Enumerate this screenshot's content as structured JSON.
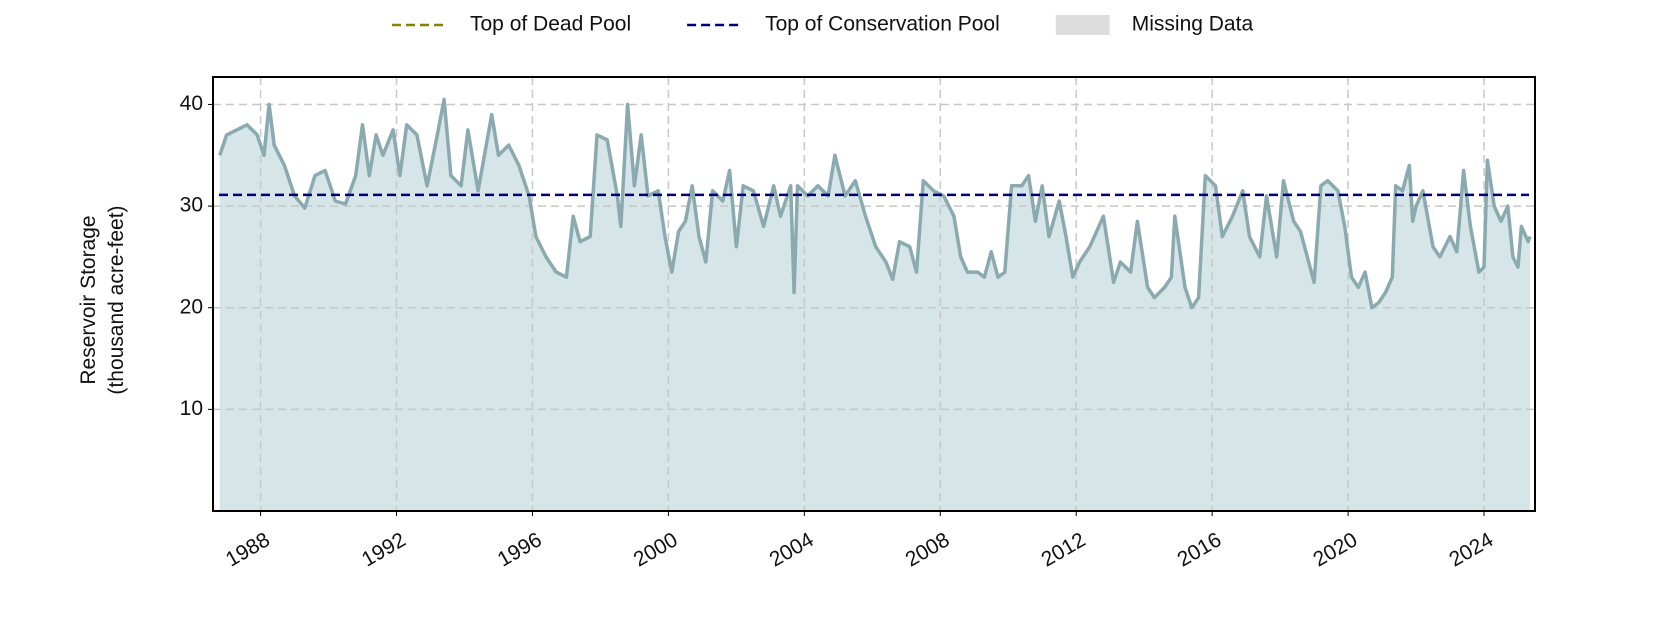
{
  "chart_data": {
    "type": "area-line",
    "ylabel": [
      "Reservoir Storage",
      "(thousand acre-feet)"
    ],
    "xlim": [
      1986.6,
      2025.5
    ],
    "ylim": [
      0,
      42.7
    ],
    "xticks": [
      1988,
      1992,
      1996,
      2000,
      2004,
      2008,
      2012,
      2016,
      2020,
      2024
    ],
    "yticks": [
      10,
      20,
      30,
      40
    ],
    "grid": true,
    "legend": "top",
    "fill_color": "#d6e5e7",
    "series": [
      {
        "name": "Reservoir Storage",
        "color": "#8aaab0",
        "x": [
          1986.8,
          1987.0,
          1987.3,
          1987.6,
          1987.9,
          1988.1,
          1988.25,
          1988.4,
          1988.7,
          1989.0,
          1989.3,
          1989.6,
          1989.9,
          1990.2,
          1990.5,
          1990.8,
          1991.0,
          1991.2,
          1991.4,
          1991.6,
          1991.9,
          1992.1,
          1992.3,
          1992.6,
          1992.9,
          1993.2,
          1993.4,
          1993.6,
          1993.9,
          1994.1,
          1994.4,
          1994.8,
          1995.0,
          1995.3,
          1995.6,
          1995.9,
          1996.1,
          1996.4,
          1996.7,
          1997.0,
          1997.2,
          1997.4,
          1997.7,
          1997.9,
          1998.2,
          1998.5,
          1998.6,
          1998.8,
          1999.0,
          1999.2,
          1999.4,
          1999.7,
          1999.9,
          2000.1,
          2000.3,
          2000.5,
          2000.7,
          2000.9,
          2001.1,
          2001.3,
          2001.6,
          2001.8,
          2002.0,
          2002.2,
          2002.5,
          2002.8,
          2003.1,
          2003.3,
          2003.6,
          2003.7,
          2003.8,
          2004.1,
          2004.4,
          2004.7,
          2004.9,
          2005.2,
          2005.5,
          2005.8,
          2006.1,
          2006.4,
          2006.6,
          2006.8,
          2007.1,
          2007.3,
          2007.5,
          2007.8,
          2008.1,
          2008.4,
          2008.6,
          2008.8,
          2009.1,
          2009.3,
          2009.5,
          2009.7,
          2009.9,
          2010.1,
          2010.4,
          2010.6,
          2010.8,
          2011.0,
          2011.2,
          2011.5,
          2011.7,
          2011.9,
          2012.1,
          2012.4,
          2012.6,
          2012.8,
          2013.1,
          2013.3,
          2013.6,
          2013.8,
          2014.1,
          2014.3,
          2014.6,
          2014.8,
          2014.9,
          2015.2,
          2015.4,
          2015.6,
          2015.8,
          2016.1,
          2016.3,
          2016.6,
          2016.9,
          2017.1,
          2017.4,
          2017.6,
          2017.9,
          2018.1,
          2018.4,
          2018.6,
          2018.8,
          2019.0,
          2019.2,
          2019.4,
          2019.7,
          2019.9,
          2020.1,
          2020.3,
          2020.5,
          2020.7,
          2020.9,
          2021.1,
          2021.3,
          2021.4,
          2021.6,
          2021.8,
          2021.9,
          2022.0,
          2022.2,
          2022.5,
          2022.7,
          2023.0,
          2023.2,
          2023.4,
          2023.6,
          2023.85,
          2024.0,
          2024.1,
          2024.3,
          2024.5,
          2024.7,
          2024.85,
          2025.0,
          2025.1,
          2025.3,
          2025.35
        ],
        "values": [
          35,
          37,
          37.5,
          38,
          37,
          35,
          40,
          36,
          34,
          31,
          29.8,
          33,
          33.5,
          30.5,
          30.2,
          33,
          38,
          33,
          37,
          35,
          37.5,
          33,
          38,
          37,
          32,
          37,
          40.5,
          33,
          32,
          37.5,
          31.5,
          39,
          35,
          36,
          34,
          31,
          27,
          25,
          23.5,
          23,
          29,
          26.5,
          27,
          37,
          36.5,
          31,
          28,
          40,
          32,
          37,
          31,
          31.5,
          27,
          23.5,
          27.5,
          28.5,
          32,
          27,
          24.5,
          31.5,
          30.5,
          33.5,
          26,
          32,
          31.5,
          28,
          32,
          29,
          32,
          21.5,
          32,
          31,
          32,
          31,
          35,
          31,
          32.5,
          29,
          26,
          24.5,
          22.8,
          26.5,
          26,
          23.5,
          32.5,
          31.5,
          31,
          29,
          25,
          23.5,
          23.5,
          23,
          25.5,
          23,
          23.5,
          32,
          32,
          33,
          28.5,
          32,
          27,
          30.5,
          27,
          23,
          24.5,
          26,
          27.5,
          29,
          22.5,
          24.5,
          23.5,
          28.5,
          22,
          21,
          22,
          23,
          29,
          22,
          20,
          21,
          33,
          32,
          27,
          29,
          31.5,
          27,
          25,
          31,
          25,
          32.5,
          28.5,
          27.5,
          25,
          22.5,
          32,
          32.5,
          31.5,
          28,
          23,
          22,
          23.5,
          20,
          20.5,
          21.5,
          23,
          32,
          31.5,
          34,
          28.5,
          30,
          31.5,
          26,
          25,
          27,
          25.5,
          33.5,
          28,
          23.5,
          24,
          34.5,
          30,
          28.5,
          30,
          25,
          24,
          28,
          26.5,
          27
        ]
      }
    ],
    "reference_lines": [
      {
        "name": "Top of Dead Pool",
        "color": "#8b8000"
      },
      {
        "name": "Top of Conservation Pool",
        "color": "#00007a",
        "value": 31.1
      }
    ],
    "missing": {
      "name": "Missing Data",
      "color": "#dddddd"
    }
  }
}
